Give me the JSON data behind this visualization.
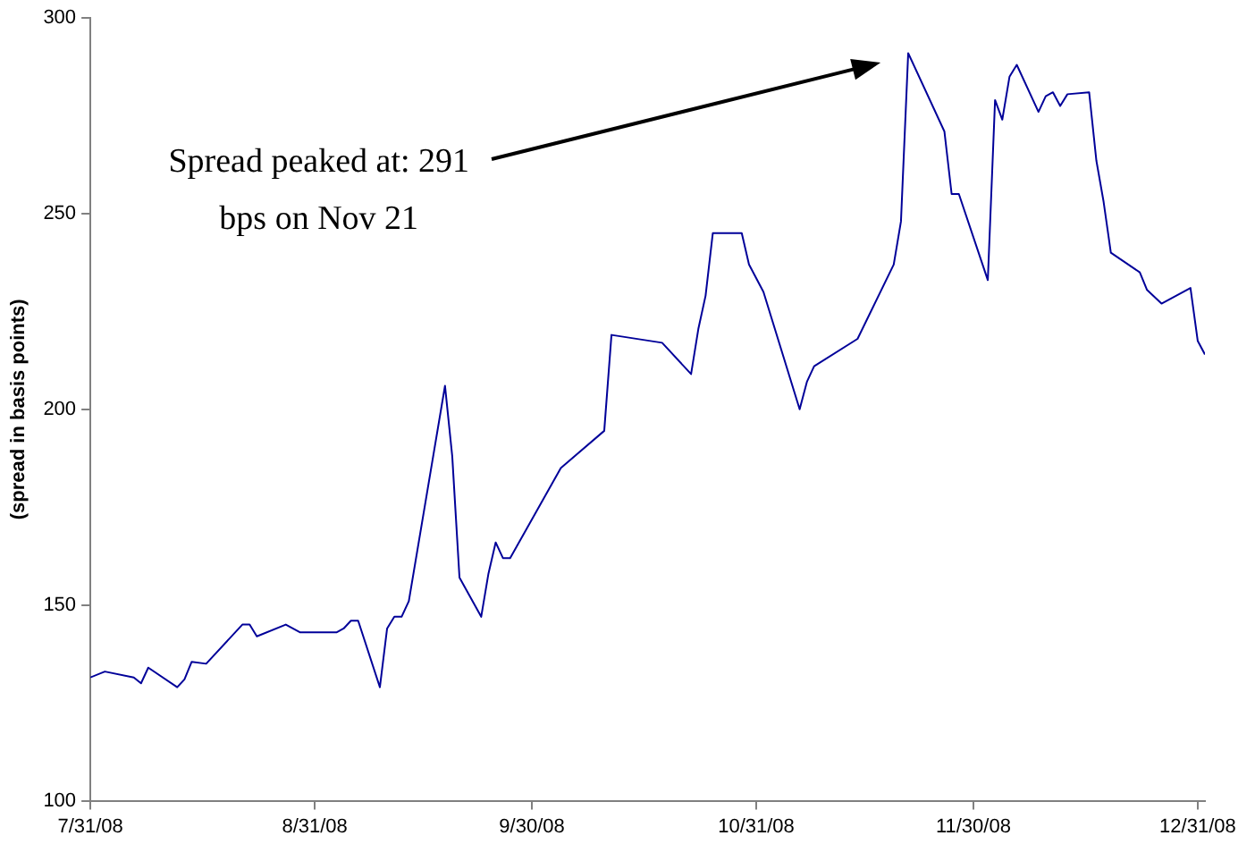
{
  "chart_data": {
    "type": "line",
    "ylabel": "(spread in basis points)",
    "annotations": [
      "Spread peaked at: 291\nbps on Nov 21"
    ],
    "x": [
      "2008-07-31",
      "2008-08-02",
      "2008-08-06",
      "2008-08-07",
      "2008-08-08",
      "2008-08-12",
      "2008-08-13",
      "2008-08-14",
      "2008-08-16",
      "2008-08-21",
      "2008-08-22",
      "2008-08-23",
      "2008-08-27",
      "2008-08-29",
      "2008-09-03",
      "2008-09-04",
      "2008-09-05",
      "2008-09-06",
      "2008-09-09",
      "2008-09-10",
      "2008-09-11",
      "2008-09-12",
      "2008-09-13",
      "2008-09-18",
      "2008-09-19",
      "2008-09-20",
      "2008-09-23",
      "2008-09-24",
      "2008-09-25",
      "2008-09-26",
      "2008-09-27",
      "2008-10-04",
      "2008-10-10",
      "2008-10-11",
      "2008-10-18",
      "2008-10-22",
      "2008-10-23",
      "2008-10-24",
      "2008-10-25",
      "2008-10-29",
      "2008-10-30",
      "2008-11-01",
      "2008-11-06",
      "2008-11-07",
      "2008-11-08",
      "2008-11-14",
      "2008-11-19",
      "2008-11-20",
      "2008-11-21",
      "2008-11-26",
      "2008-11-27",
      "2008-11-28",
      "2008-12-02",
      "2008-12-03",
      "2008-12-04",
      "2008-12-05",
      "2008-12-06",
      "2008-12-09",
      "2008-12-10",
      "2008-12-11",
      "2008-12-12",
      "2008-12-13",
      "2008-12-16",
      "2008-12-17",
      "2008-12-18",
      "2008-12-19",
      "2008-12-23",
      "2008-12-24",
      "2008-12-26",
      "2008-12-30",
      "2008-12-31",
      "2009-01-01"
    ],
    "series": [
      {
        "color": "#000099",
        "values": [
          131.5,
          133,
          131.5,
          130,
          134,
          129,
          131,
          135.5,
          135,
          145,
          145,
          142,
          145,
          143,
          143,
          144,
          146,
          146,
          129,
          144,
          147,
          147,
          151,
          206,
          188,
          157,
          147,
          158,
          166,
          162,
          162,
          185,
          194.5,
          219,
          217,
          209,
          220.5,
          229,
          245,
          245,
          237,
          230,
          200,
          207,
          211,
          218,
          237,
          248,
          291,
          271,
          255,
          255,
          233,
          279,
          274,
          285,
          288,
          276,
          280,
          281,
          277.5,
          280.5,
          281,
          263.5,
          253,
          240,
          235,
          230.5,
          227,
          231,
          217.5,
          214
        ]
      }
    ],
    "xlim": [
      "2008-07-31",
      "2009-01-01"
    ],
    "xticks": [
      {
        "value": "2008-07-31",
        "label": "7/31/08"
      },
      {
        "value": "2008-08-31",
        "label": "8/31/08"
      },
      {
        "value": "2008-09-30",
        "label": "9/30/08"
      },
      {
        "value": "2008-10-31",
        "label": "10/31/08"
      },
      {
        "value": "2008-11-30",
        "label": "11/30/08"
      },
      {
        "value": "2008-12-31",
        "label": "12/31/08"
      }
    ],
    "ylim": [
      100,
      300
    ],
    "yticks": [
      100,
      150,
      200,
      250,
      300
    ],
    "grid": false,
    "legend": false,
    "marker": "none",
    "line_style": "solid"
  }
}
